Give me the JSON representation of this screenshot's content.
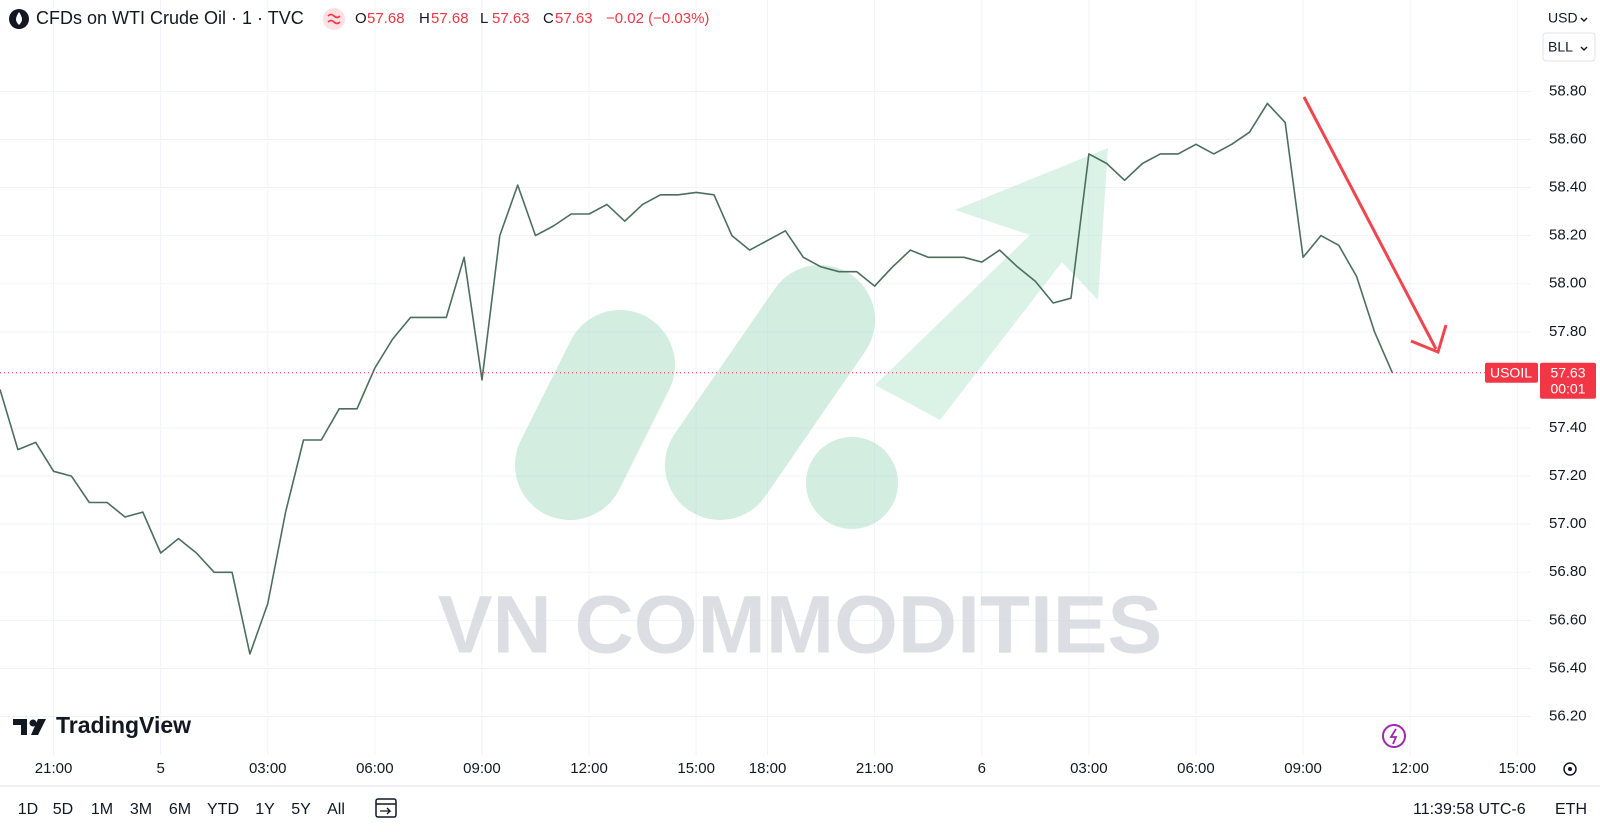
{
  "header": {
    "symbol_title": "CFDs on WTI Crude Oil · 1 · TVC",
    "ohlc": [
      {
        "label": "O",
        "value": "57.68"
      },
      {
        "label": "H",
        "value": "57.68"
      },
      {
        "label": "L",
        "value": "57.63"
      },
      {
        "label": "C",
        "value": "57.63"
      }
    ],
    "change": "−0.02 (−0.03%)"
  },
  "price_scale": {
    "currency": "USD",
    "unit": "BLL"
  },
  "watermark": "VN COMMODITIES",
  "branding": "TradingView",
  "toolbar": {
    "ranges": [
      "1D",
      "5D",
      "1M",
      "3M",
      "6M",
      "YTD",
      "1Y",
      "5Y",
      "All"
    ],
    "clock": "11:39:58 UTC-6",
    "session": "ETH"
  },
  "chart_data": {
    "type": "line",
    "color": "#4c6e5f",
    "categories": [
      null,
      null,
      null,
      "21:00",
      null,
      null,
      null,
      null,
      null,
      "5",
      null,
      null,
      null,
      null,
      null,
      "03:00",
      null,
      null,
      null,
      null,
      null,
      "06:00",
      null,
      null,
      null,
      null,
      null,
      "09:00",
      null,
      null,
      null,
      null,
      null,
      "12:00",
      null,
      null,
      null,
      null,
      null,
      "15:00",
      null,
      null,
      null,
      "18:00",
      null,
      null,
      null,
      null,
      null,
      "21:00",
      null,
      null,
      null,
      null,
      null,
      "6",
      null,
      null,
      null,
      null,
      null,
      "03:00",
      null,
      null,
      null,
      null,
      null,
      "06:00",
      null,
      null,
      null,
      null,
      null,
      "09:00",
      null,
      null,
      null,
      null,
      null,
      "12:00",
      null,
      null,
      null,
      null,
      null,
      "15:00"
    ],
    "values": [
      57.56,
      57.31,
      57.34,
      57.22,
      57.2,
      57.09,
      57.09,
      57.03,
      57.05,
      56.88,
      56.94,
      56.88,
      56.8,
      56.8,
      56.46,
      56.67,
      57.05,
      57.35,
      57.35,
      57.48,
      57.48,
      57.65,
      57.77,
      57.86,
      57.86,
      57.86,
      58.11,
      57.6,
      58.2,
      58.41,
      58.2,
      58.24,
      58.29,
      58.29,
      58.33,
      58.26,
      58.33,
      58.37,
      58.37,
      58.38,
      58.37,
      58.2,
      58.14,
      58.18,
      58.22,
      58.11,
      58.07,
      58.05,
      58.05,
      57.99,
      58.07,
      58.14,
      58.11,
      58.11,
      58.11,
      58.09,
      58.14,
      58.07,
      58.01,
      57.92,
      57.94,
      58.54,
      58.5,
      58.43,
      58.5,
      58.54,
      58.54,
      58.58,
      58.54,
      58.58,
      58.63,
      58.75,
      58.67,
      58.11,
      58.2,
      58.16,
      58.03,
      57.8,
      57.63,
      null,
      null,
      null,
      null,
      null,
      null,
      null
    ],
    "last_price": {
      "symbol": "USOIL",
      "value": 57.63,
      "label": "57.63",
      "countdown": "00:01"
    },
    "ylim": [
      56.04,
      59.18
    ],
    "yticks": [
      {
        "value": 56.2,
        "label": "56.20"
      },
      {
        "value": 56.4,
        "label": "56.40"
      },
      {
        "value": 56.6,
        "label": "56.60"
      },
      {
        "value": 56.8,
        "label": "56.80"
      },
      {
        "value": 57.0,
        "label": "57.00"
      },
      {
        "value": 57.2,
        "label": "57.20"
      },
      {
        "value": 57.4,
        "label": "57.40"
      },
      {
        "value": 57.8,
        "label": "57.80"
      },
      {
        "value": 58.0,
        "label": "58.00"
      },
      {
        "value": 58.2,
        "label": "58.20"
      },
      {
        "value": 58.4,
        "label": "58.40"
      },
      {
        "value": 58.6,
        "label": "58.60"
      },
      {
        "value": 58.8,
        "label": "58.80"
      }
    ],
    "grid": true
  }
}
